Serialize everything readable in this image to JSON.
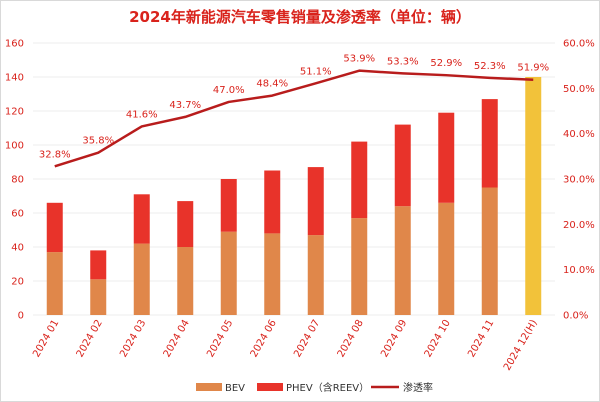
{
  "chart_data": {
    "type": "bar",
    "title": "2024年新能源汽车零售销量及渗透率（单位：辆）",
    "categories": [
      "2024 01",
      "2024 02",
      "2024 03",
      "2024 04",
      "2024 05",
      "2024 06",
      "2024 07",
      "2024 08",
      "2024 09",
      "2024 10",
      "2024 11",
      "2024 12(H)"
    ],
    "y_left": {
      "min": 0,
      "max": 160,
      "step": 20,
      "ticks": [
        "0",
        "20",
        "40",
        "60",
        "80",
        "100",
        "120",
        "140",
        "160"
      ]
    },
    "y_right": {
      "min": 0,
      "max": 60,
      "step": 10,
      "ticks": [
        "0.0%",
        "10.0%",
        "20.0%",
        "30.0%",
        "40.0%",
        "50.0%",
        "60.0%"
      ]
    },
    "stacked": true,
    "series": [
      {
        "name": "BEV",
        "type": "bar",
        "color": "#e0874a",
        "values": [
          37,
          21,
          42,
          40,
          49,
          48,
          47,
          57,
          64,
          66,
          75,
          null
        ]
      },
      {
        "name": "PHEV（含REEV）",
        "type": "bar",
        "color": "#e8332a",
        "values": [
          29,
          17,
          29,
          27,
          31,
          37,
          40,
          45,
          48,
          53,
          52,
          null
        ]
      },
      {
        "name": "渗透率",
        "type": "line",
        "axis": "right",
        "color": "#b81c1c",
        "values": [
          32.8,
          35.8,
          41.6,
          43.7,
          47.0,
          48.4,
          51.1,
          53.9,
          53.3,
          52.9,
          52.3,
          51.9
        ],
        "labels": [
          "32.8%",
          "35.8%",
          "41.6%",
          "43.7%",
          "47.0%",
          "48.4%",
          "51.1%",
          "53.9%",
          "53.3%",
          "52.9%",
          "52.3%",
          "51.9%"
        ]
      }
    ],
    "highlight_bar": {
      "category": "2024 12(H)",
      "value": 140,
      "color": "#f2c23a"
    },
    "grid": true,
    "legend_position": "bottom"
  }
}
